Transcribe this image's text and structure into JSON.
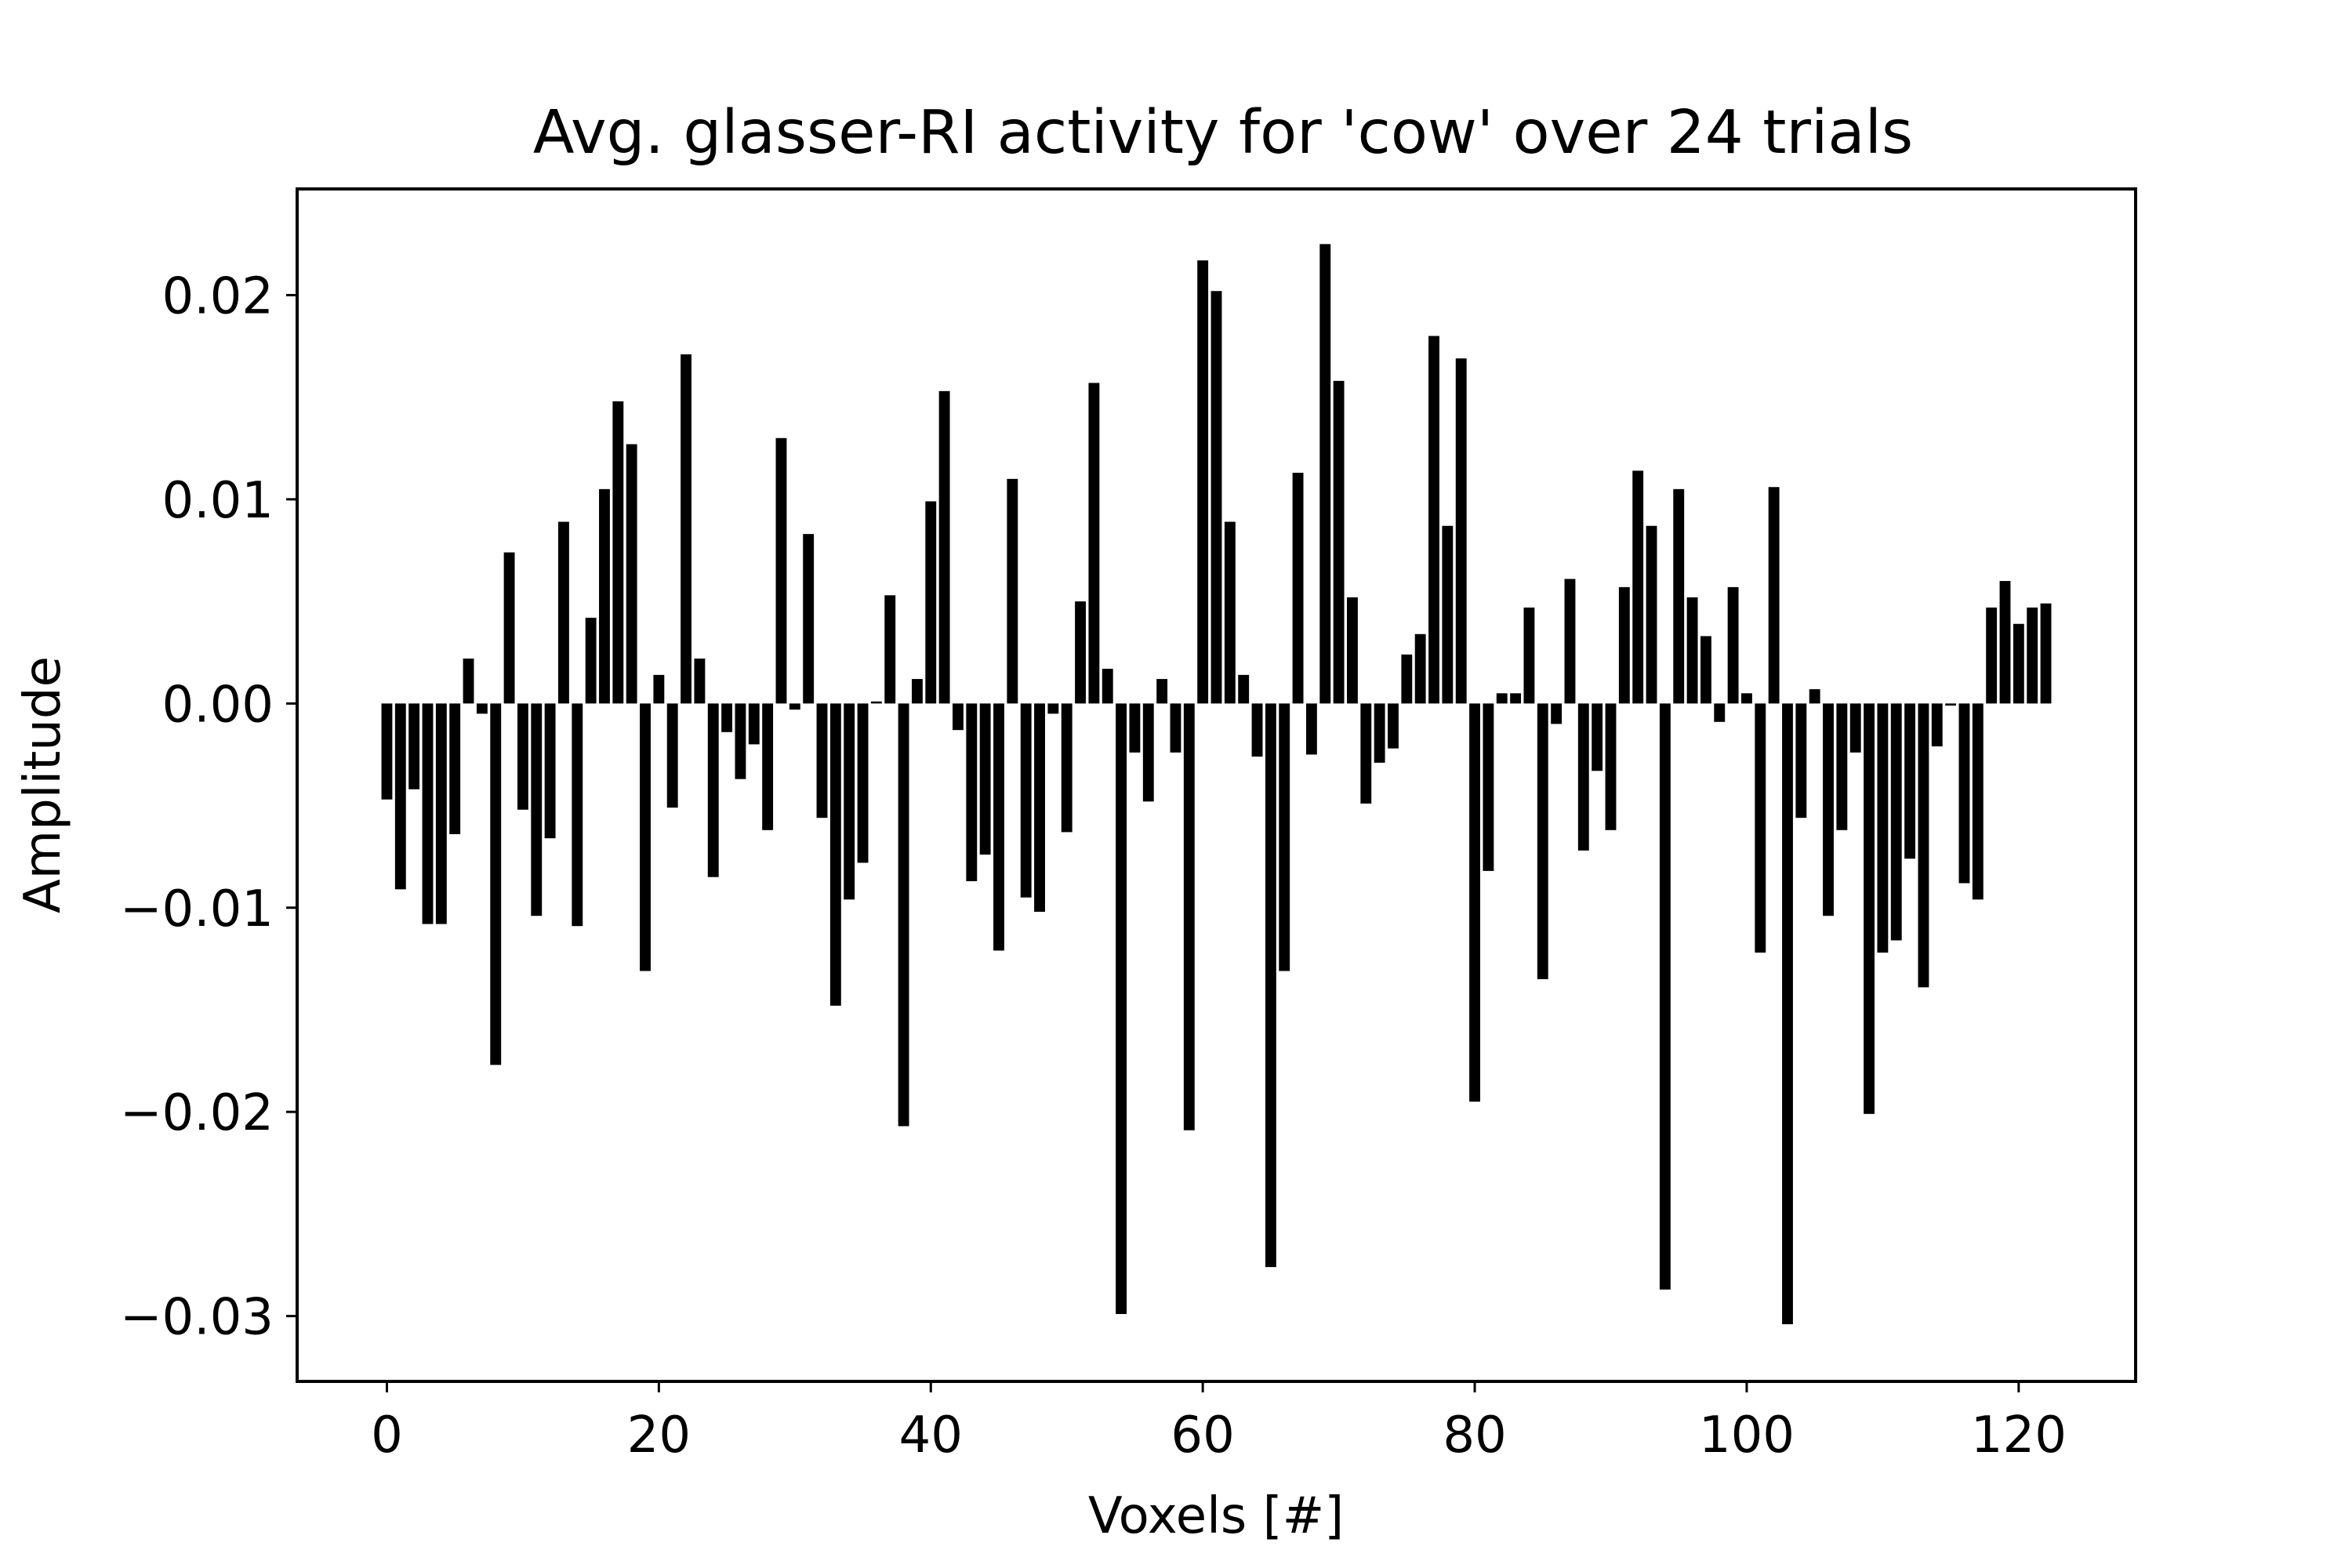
{
  "chart_data": {
    "type": "bar",
    "title": "Avg. glasser-RI activity for 'cow' over 24 trials",
    "xlabel": "Voxels [#]",
    "ylabel": "Amplitude",
    "xlim": [
      -6.6,
      128.6
    ],
    "ylim": [
      -0.0332,
      0.0252
    ],
    "xticks": [
      0,
      20,
      40,
      60,
      80,
      100,
      120
    ],
    "xtick_labels": [
      "0",
      "20",
      "40",
      "60",
      "80",
      "100",
      "120"
    ],
    "yticks": [
      -0.03,
      -0.02,
      -0.01,
      0.0,
      0.01,
      0.02
    ],
    "ytick_labels": [
      "−0.03",
      "−0.02",
      "−0.01",
      "0.00",
      "0.01",
      "0.02"
    ],
    "grid": false,
    "bar_color": "#000000",
    "x": [
      0,
      1,
      2,
      3,
      4,
      5,
      6,
      7,
      8,
      9,
      10,
      11,
      12,
      13,
      14,
      15,
      16,
      17,
      18,
      19,
      20,
      21,
      22,
      23,
      24,
      25,
      26,
      27,
      28,
      29,
      30,
      31,
      32,
      33,
      34,
      35,
      36,
      37,
      38,
      39,
      40,
      41,
      42,
      43,
      44,
      45,
      46,
      47,
      48,
      49,
      50,
      51,
      52,
      53,
      54,
      55,
      56,
      57,
      58,
      59,
      60,
      61,
      62,
      63,
      64,
      65,
      66,
      67,
      68,
      69,
      70,
      71,
      72,
      73,
      74,
      75,
      76,
      77,
      78,
      79,
      80,
      81,
      82,
      83,
      84,
      85,
      86,
      87,
      88,
      89,
      90,
      91,
      92,
      93,
      94,
      95,
      96,
      97,
      98,
      99,
      100,
      101,
      102,
      103,
      104,
      105,
      106,
      107,
      108,
      109,
      110,
      111,
      112,
      113,
      114,
      115,
      116,
      117,
      118,
      119,
      120,
      121,
      122
    ],
    "values": [
      -0.0047,
      -0.0091,
      -0.0042,
      -0.0108,
      -0.0108,
      -0.0064,
      0.0022,
      -0.0005,
      -0.0177,
      0.0074,
      -0.0052,
      -0.0104,
      -0.0066,
      0.0089,
      -0.0109,
      0.0042,
      0.0105,
      0.0148,
      0.0127,
      -0.0131,
      0.0014,
      -0.0051,
      0.0171,
      0.0022,
      -0.0085,
      -0.0014,
      -0.0037,
      -0.002,
      -0.0062,
      0.013,
      -0.0003,
      0.0083,
      -0.0056,
      -0.0148,
      -0.0096,
      -0.0078,
      0.0001,
      0.0053,
      -0.0207,
      0.0012,
      0.0099,
      0.0153,
      -0.0013,
      -0.0087,
      -0.0074,
      -0.0121,
      0.011,
      -0.0095,
      -0.0102,
      -0.0005,
      -0.0063,
      0.005,
      0.0157,
      0.0017,
      -0.0299,
      -0.0024,
      -0.0048,
      0.0012,
      -0.0024,
      -0.0209,
      0.0217,
      0.0202,
      0.0089,
      0.0014,
      -0.0026,
      -0.0276,
      -0.0131,
      0.0113,
      -0.0025,
      0.0225,
      0.0158,
      0.0052,
      -0.0049,
      -0.0029,
      -0.0022,
      0.0024,
      0.0034,
      0.018,
      0.0087,
      0.0169,
      -0.0195,
      -0.0082,
      0.0005,
      0.0005,
      0.0047,
      -0.0135,
      -0.001,
      0.0061,
      -0.0072,
      -0.0033,
      -0.0062,
      0.0057,
      0.0114,
      0.0087,
      -0.0287,
      0.0105,
      0.0052,
      0.0033,
      -0.0009,
      0.0057,
      0.0005,
      -0.0122,
      0.0106,
      -0.0304,
      -0.0056,
      0.0007,
      -0.0104,
      -0.0062,
      -0.0024,
      -0.0201,
      -0.0122,
      -0.0116,
      -0.0076,
      -0.0139,
      -0.0021,
      -0.0001,
      -0.0088,
      -0.0096,
      0.0047,
      0.006,
      0.0039,
      0.0047,
      0.0049
    ]
  }
}
